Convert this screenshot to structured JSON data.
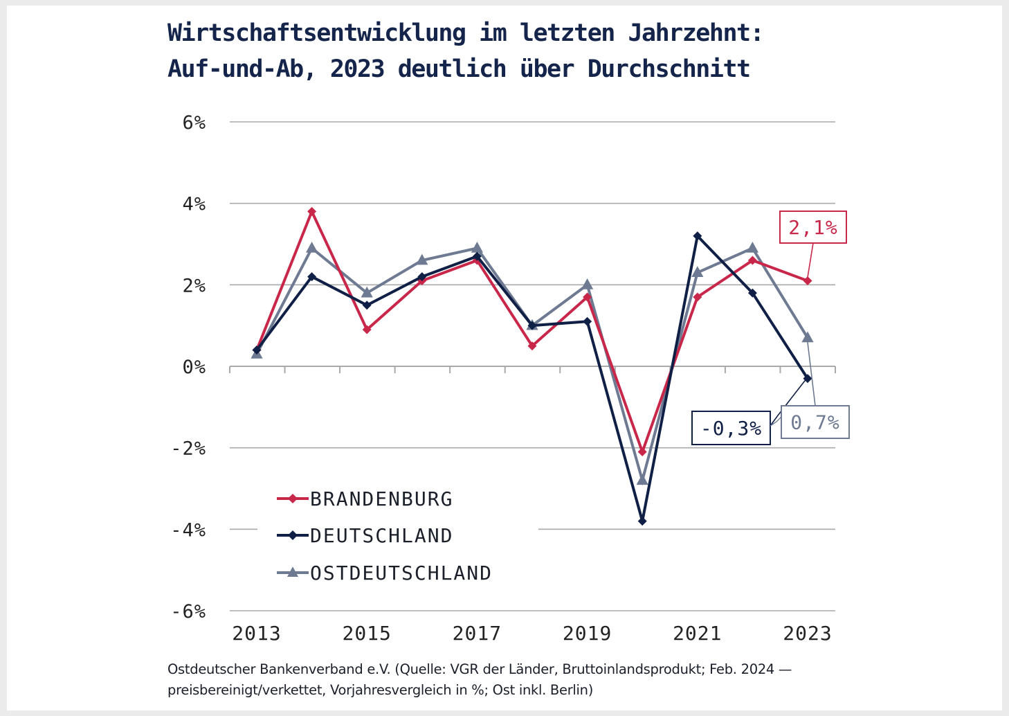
{
  "title": {
    "line1": "Wirtschaftsentwicklung im letzten Jahrzehnt:",
    "line2": "Auf-und-Ab, 2023 deutlich über Durchschnitt"
  },
  "source": {
    "line1": "Ostdeutscher Bankenverband e.V. (Quelle: VGR der Länder, Bruttoinlandsprodukt; Feb. 2024 —",
    "line2": "preisbereinigt/verkettet, Vorjahresvergleich in %; Ost inkl. Berlin)"
  },
  "colors": {
    "brandenburg": "#c8274a",
    "deutschland": "#0f1f45",
    "ostdeutschland": "#6d7a92",
    "grid": "#a9a9a9",
    "axis_text": "#222222"
  },
  "chart_data": {
    "type": "line",
    "x": [
      2013,
      2014,
      2015,
      2016,
      2017,
      2018,
      2019,
      2020,
      2021,
      2022,
      2023
    ],
    "x_tick_labels": [
      "2013",
      "2015",
      "2017",
      "2019",
      "2021",
      "2023"
    ],
    "y_tick_labels": [
      "6%",
      "4%",
      "2%",
      "0%",
      "-2%",
      "-4%",
      "-6%"
    ],
    "y_ticks": [
      6,
      4,
      2,
      0,
      -2,
      -4,
      -6
    ],
    "ylim": [
      -6,
      6
    ],
    "grid": "horizontal",
    "legend_position": "bottom-left",
    "series": [
      {
        "name": "BRANDENBURG",
        "color": "#c8274a",
        "marker": "diamond",
        "values": [
          0.4,
          3.8,
          0.9,
          2.1,
          2.6,
          0.5,
          1.7,
          -2.1,
          1.7,
          2.6,
          2.1
        ]
      },
      {
        "name": "DEUTSCHLAND",
        "color": "#0f1f45",
        "marker": "diamond",
        "values": [
          0.4,
          2.2,
          1.5,
          2.2,
          2.7,
          1.0,
          1.1,
          -3.8,
          3.2,
          1.8,
          -0.3
        ]
      },
      {
        "name": "OSTDEUTSCHLAND",
        "color": "#6d7a92",
        "marker": "triangle",
        "values": [
          0.3,
          2.9,
          1.8,
          2.6,
          2.9,
          1.0,
          2.0,
          -2.8,
          2.3,
          2.9,
          0.7
        ]
      }
    ],
    "annotations": [
      {
        "series": 0,
        "text": "2,1%"
      },
      {
        "series": 1,
        "text": "-0,3%"
      },
      {
        "series": 2,
        "text": "0,7%"
      }
    ]
  }
}
